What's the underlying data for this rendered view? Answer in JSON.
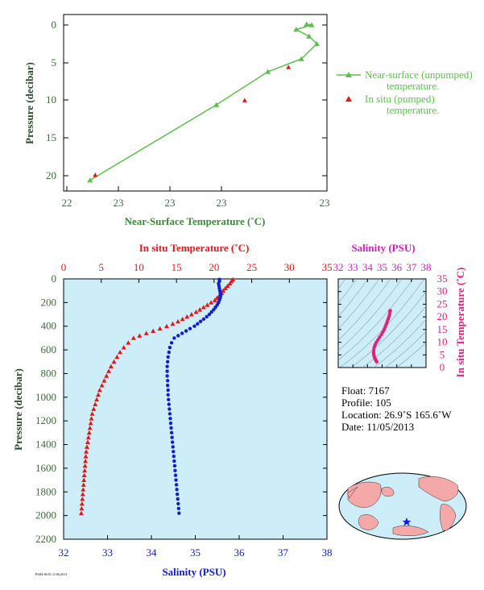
{
  "chart_data": [
    {
      "type": "line",
      "xlabel": "Near-Surface Temperature (˚C)",
      "ylabel": "Pressure (decibar)",
      "x_tick_labels": [
        "22",
        "23",
        "23",
        "23",
        "23"
      ],
      "y_tick_labels": [
        "0",
        "5",
        "10",
        "15",
        "20"
      ],
      "xlim": [
        22.0,
        23.0
      ],
      "ylim": [
        21.5,
        -0.8
      ],
      "y_reversed": true,
      "series": [
        {
          "name": "Near-surface (unpumped) temperature.",
          "style": "line-triangle",
          "color": "#5cbf4c",
          "x": [
            22.09,
            22.58,
            22.78,
            22.91,
            22.97,
            22.94,
            22.89,
            22.95,
            22.93
          ],
          "y": [
            20.6,
            10.6,
            6.2,
            4.5,
            2.5,
            1.5,
            0.6,
            0.0,
            -0.1
          ]
        },
        {
          "name": "In situ (pumped) temperature.",
          "style": "marker-triangle",
          "color": "#e01818",
          "x": [
            22.11,
            22.69,
            22.86
          ],
          "y": [
            19.9,
            10.0,
            5.6
          ]
        }
      ]
    },
    {
      "type": "scatter",
      "ylabel": "Pressure (decibar)",
      "top_axis_label": "In situ Temperature (˚C)",
      "bottom_axis_label": "Salinity (PSU)",
      "temperature_ticks": [
        "0",
        "5",
        "10",
        "15",
        "20",
        "25",
        "30",
        "35"
      ],
      "salinity_ticks": [
        "32",
        "33",
        "34",
        "35",
        "36",
        "37",
        "38"
      ],
      "pressure_ticks": [
        "0",
        "200",
        "400",
        "600",
        "800",
        "1000",
        "1200",
        "1400",
        "1600",
        "1800",
        "2000",
        "2200"
      ],
      "temperature_range": [
        0,
        35
      ],
      "salinity_range": [
        32,
        38
      ],
      "pressure_range": [
        0,
        2200
      ],
      "series": [
        {
          "name": "In situ Temperature",
          "color": "#e01818",
          "points": [
            [
              22.5,
              5
            ],
            [
              22.3,
              20
            ],
            [
              22.1,
              40
            ],
            [
              21.8,
              60
            ],
            [
              21.5,
              80
            ],
            [
              21.2,
              100
            ],
            [
              21.0,
              120
            ],
            [
              20.7,
              140
            ],
            [
              20.4,
              160
            ],
            [
              20.1,
              180
            ],
            [
              19.6,
              200
            ],
            [
              19.1,
              220
            ],
            [
              18.6,
              240
            ],
            [
              18.1,
              260
            ],
            [
              17.6,
              280
            ],
            [
              17.0,
              300
            ],
            [
              16.4,
              320
            ],
            [
              15.8,
              340
            ],
            [
              15.2,
              360
            ],
            [
              14.5,
              380
            ],
            [
              13.7,
              400
            ],
            [
              12.8,
              420
            ],
            [
              11.9,
              440
            ],
            [
              11.0,
              460
            ],
            [
              10.1,
              480
            ],
            [
              9.3,
              500
            ],
            [
              8.6,
              540
            ],
            [
              8.0,
              580
            ],
            [
              7.5,
              620
            ],
            [
              7.1,
              660
            ],
            [
              6.7,
              700
            ],
            [
              6.3,
              740
            ],
            [
              6.0,
              780
            ],
            [
              5.7,
              820
            ],
            [
              5.4,
              860
            ],
            [
              5.1,
              900
            ],
            [
              4.8,
              940
            ],
            [
              4.6,
              980
            ],
            [
              4.4,
              1020
            ],
            [
              4.2,
              1060
            ],
            [
              4.0,
              1100
            ],
            [
              3.8,
              1140
            ],
            [
              3.7,
              1180
            ],
            [
              3.6,
              1220
            ],
            [
              3.5,
              1260
            ],
            [
              3.4,
              1300
            ],
            [
              3.3,
              1340
            ],
            [
              3.2,
              1380
            ],
            [
              3.1,
              1420
            ],
            [
              3.0,
              1460
            ],
            [
              2.95,
              1500
            ],
            [
              2.9,
              1540
            ],
            [
              2.85,
              1580
            ],
            [
              2.8,
              1620
            ],
            [
              2.75,
              1660
            ],
            [
              2.7,
              1700
            ],
            [
              2.65,
              1740
            ],
            [
              2.6,
              1780
            ],
            [
              2.55,
              1820
            ],
            [
              2.5,
              1860
            ],
            [
              2.45,
              1900
            ],
            [
              2.4,
              1940
            ],
            [
              2.35,
              1980
            ]
          ]
        },
        {
          "name": "Salinity",
          "color": "#1020d0",
          "points": [
            [
              35.55,
              5
            ],
            [
              35.55,
              20
            ],
            [
              35.53,
              40
            ],
            [
              35.54,
              60
            ],
            [
              35.55,
              80
            ],
            [
              35.56,
              100
            ],
            [
              35.57,
              120
            ],
            [
              35.58,
              140
            ],
            [
              35.57,
              160
            ],
            [
              35.55,
              180
            ],
            [
              35.53,
              200
            ],
            [
              35.5,
              220
            ],
            [
              35.46,
              240
            ],
            [
              35.42,
              260
            ],
            [
              35.37,
              280
            ],
            [
              35.32,
              300
            ],
            [
              35.26,
              320
            ],
            [
              35.19,
              340
            ],
            [
              35.12,
              360
            ],
            [
              35.05,
              380
            ],
            [
              34.98,
              400
            ],
            [
              34.88,
              420
            ],
            [
              34.79,
              440
            ],
            [
              34.7,
              460
            ],
            [
              34.61,
              480
            ],
            [
              34.52,
              500
            ],
            [
              34.46,
              540
            ],
            [
              34.42,
              580
            ],
            [
              34.4,
              620
            ],
            [
              34.38,
              660
            ],
            [
              34.37,
              700
            ],
            [
              34.36,
              740
            ],
            [
              34.36,
              780
            ],
            [
              34.36,
              820
            ],
            [
              34.37,
              860
            ],
            [
              34.37,
              900
            ],
            [
              34.38,
              940
            ],
            [
              34.38,
              980
            ],
            [
              34.39,
              1020
            ],
            [
              34.4,
              1060
            ],
            [
              34.41,
              1100
            ],
            [
              34.42,
              1140
            ],
            [
              34.43,
              1180
            ],
            [
              34.44,
              1220
            ],
            [
              34.45,
              1260
            ],
            [
              34.46,
              1300
            ],
            [
              34.47,
              1340
            ],
            [
              34.48,
              1380
            ],
            [
              34.49,
              1420
            ],
            [
              34.5,
              1460
            ],
            [
              34.51,
              1500
            ],
            [
              34.52,
              1540
            ],
            [
              34.53,
              1580
            ],
            [
              34.54,
              1620
            ],
            [
              34.55,
              1660
            ],
            [
              34.56,
              1700
            ],
            [
              34.57,
              1740
            ],
            [
              34.58,
              1780
            ],
            [
              34.59,
              1820
            ],
            [
              34.6,
              1860
            ],
            [
              34.61,
              1900
            ],
            [
              34.62,
              1940
            ],
            [
              34.63,
              1980
            ]
          ]
        }
      ]
    },
    {
      "type": "scatter",
      "top_axis_label": "Salinity (PSU)",
      "right_axis_label": "In situ Temperature (˚C)",
      "salinity_ticks": [
        "32",
        "33",
        "34",
        "35",
        "36",
        "37",
        "38"
      ],
      "temperature_ticks": [
        "0",
        "5",
        "10",
        "15",
        "20",
        "25",
        "30",
        "35"
      ],
      "salinity_range": [
        32,
        38
      ],
      "temperature_range": [
        0,
        35
      ],
      "series": [
        {
          "name": "T-S",
          "color": "#e0207a",
          "points": [
            [
              34.63,
              2.3
            ],
            [
              34.6,
              2.6
            ],
            [
              34.56,
              3.0
            ],
            [
              34.52,
              3.5
            ],
            [
              34.48,
              4.0
            ],
            [
              34.45,
              4.6
            ],
            [
              34.43,
              5.2
            ],
            [
              34.42,
              6.0
            ],
            [
              34.43,
              7.0
            ],
            [
              34.46,
              8.0
            ],
            [
              34.52,
              9.0
            ],
            [
              34.61,
              10.0
            ],
            [
              34.72,
              11.0
            ],
            [
              34.83,
              12.0
            ],
            [
              34.95,
              13.0
            ],
            [
              35.05,
              14.0
            ],
            [
              35.14,
              15.0
            ],
            [
              35.21,
              16.0
            ],
            [
              35.28,
              17.0
            ],
            [
              35.34,
              18.0
            ],
            [
              35.4,
              19.0
            ],
            [
              35.46,
              20.0
            ],
            [
              35.51,
              21.0
            ],
            [
              35.54,
              22.0
            ],
            [
              35.55,
              22.5
            ]
          ]
        }
      ]
    }
  ],
  "info": {
    "float": "Float:  7167",
    "profile": "Profile:  105",
    "location": "Location:  26.9˚S  165.6˚W",
    "date": "Date:  11/05/2013"
  },
  "footer_note": "PSD4-06-01 11/06/2013",
  "colors": {
    "near_surface": "#5cbf4c",
    "temperature": "#e01818",
    "salinity": "#1020d0",
    "ts": "#e0207a",
    "plot_bg": "#cdeef8",
    "axis_label": "#3a6a3a"
  }
}
